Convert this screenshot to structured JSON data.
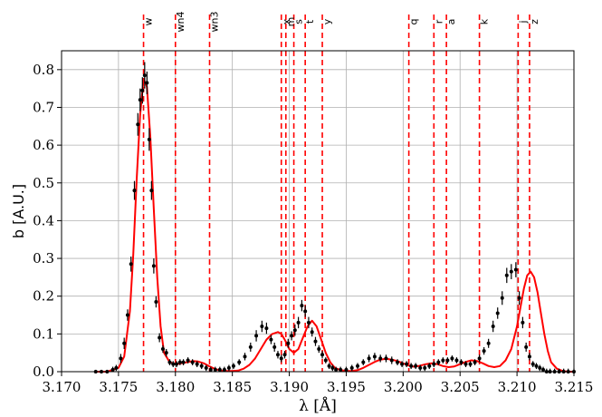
{
  "chart_data": {
    "type": "line",
    "xlabel": "λ [Å]",
    "ylabel": "b [A.U.]",
    "xlim": [
      3.17,
      3.215
    ],
    "ylim": [
      0.0,
      0.85
    ],
    "xticks": [
      "3.170",
      "3.175",
      "3.180",
      "3.185",
      "3.190",
      "3.195",
      "3.200",
      "3.205",
      "3.210",
      "3.215"
    ],
    "yticks": [
      "0.0",
      "0.1",
      "0.2",
      "0.3",
      "0.4",
      "0.5",
      "0.6",
      "0.7",
      "0.8"
    ],
    "grid": true,
    "line_labels": [
      {
        "label": "w",
        "x": 3.1772
      },
      {
        "label": "wn4",
        "x": 3.18
      },
      {
        "label": "wn3",
        "x": 3.183
      },
      {
        "label": "x",
        "x": 3.1893
      },
      {
        "label": "m",
        "x": 3.1897
      },
      {
        "label": "s",
        "x": 3.1904
      },
      {
        "label": "t",
        "x": 3.1914
      },
      {
        "label": "y",
        "x": 3.1929
      },
      {
        "label": "q",
        "x": 3.2005
      },
      {
        "label": "r",
        "x": 3.2027
      },
      {
        "label": "a",
        "x": 3.2038
      },
      {
        "label": "k",
        "x": 3.2067
      },
      {
        "label": "j",
        "x": 3.2101
      },
      {
        "label": "z",
        "x": 3.2111
      }
    ],
    "colors": {
      "fit": "#ff0000",
      "lines": "#ff0000",
      "points": "#000000",
      "grid": "#b0b0b0"
    },
    "series": [
      {
        "type": "scatter_errorbar",
        "x": [
          3.173,
          3.1735,
          3.174,
          3.1745,
          3.1748,
          3.1752,
          3.1755,
          3.1758,
          3.1761,
          3.1764,
          3.1767,
          3.1769,
          3.1771,
          3.1773,
          3.1775,
          3.1777,
          3.1779,
          3.1781,
          3.1783,
          3.1786,
          3.1789,
          3.1792,
          3.1795,
          3.1798,
          3.1801,
          3.1804,
          3.1807,
          3.1811,
          3.1815,
          3.1819,
          3.1823,
          3.1827,
          3.1831,
          3.1835,
          3.1839,
          3.1843,
          3.1847,
          3.1851,
          3.1856,
          3.1861,
          3.1866,
          3.1871,
          3.1876,
          3.188,
          3.1884,
          3.1887,
          3.189,
          3.1893,
          3.1896,
          3.1899,
          3.1902,
          3.1905,
          3.1908,
          3.1911,
          3.1914,
          3.1917,
          3.192,
          3.1923,
          3.1926,
          3.1929,
          3.1932,
          3.1935,
          3.1938,
          3.1941,
          3.1945,
          3.195,
          3.1955,
          3.196,
          3.1965,
          3.197,
          3.1975,
          3.198,
          3.1985,
          3.199,
          3.1995,
          3.1999,
          3.2003,
          3.2007,
          3.2011,
          3.2015,
          3.2019,
          3.2023,
          3.2027,
          3.2031,
          3.2035,
          3.2039,
          3.2043,
          3.2047,
          3.2051,
          3.2055,
          3.2059,
          3.2063,
          3.2067,
          3.2071,
          3.2075,
          3.2079,
          3.2083,
          3.2087,
          3.2091,
          3.2095,
          3.2099,
          3.2102,
          3.2105,
          3.2108,
          3.2111,
          3.2114,
          3.2117,
          3.212,
          3.2123,
          3.2126,
          3.2129,
          3.2133,
          3.2137,
          3.2141,
          3.2145,
          3.215
        ],
        "y": [
          0.0,
          0.0,
          0.0,
          0.005,
          0.01,
          0.035,
          0.075,
          0.15,
          0.285,
          0.48,
          0.655,
          0.72,
          0.745,
          0.785,
          0.765,
          0.615,
          0.48,
          0.28,
          0.185,
          0.09,
          0.06,
          0.05,
          0.025,
          0.02,
          0.02,
          0.025,
          0.025,
          0.03,
          0.025,
          0.02,
          0.015,
          0.01,
          0.005,
          0.005,
          0.005,
          0.005,
          0.01,
          0.015,
          0.025,
          0.04,
          0.065,
          0.095,
          0.12,
          0.115,
          0.085,
          0.065,
          0.045,
          0.035,
          0.045,
          0.075,
          0.095,
          0.11,
          0.13,
          0.175,
          0.16,
          0.13,
          0.105,
          0.08,
          0.06,
          0.045,
          0.03,
          0.015,
          0.01,
          0.005,
          0.005,
          0.005,
          0.01,
          0.015,
          0.025,
          0.035,
          0.04,
          0.035,
          0.035,
          0.03,
          0.025,
          0.02,
          0.02,
          0.015,
          0.015,
          0.01,
          0.01,
          0.015,
          0.02,
          0.025,
          0.03,
          0.03,
          0.035,
          0.03,
          0.025,
          0.02,
          0.02,
          0.025,
          0.035,
          0.055,
          0.075,
          0.12,
          0.155,
          0.195,
          0.255,
          0.265,
          0.27,
          0.195,
          0.13,
          0.065,
          0.04,
          0.02,
          0.015,
          0.01,
          0.005,
          0.0,
          0.0,
          0.0,
          0.0,
          0.0,
          0.0,
          0.0
        ],
        "yerr": [
          0.005,
          0.005,
          0.005,
          0.008,
          0.008,
          0.012,
          0.015,
          0.015,
          0.02,
          0.025,
          0.03,
          0.03,
          0.035,
          0.035,
          0.03,
          0.03,
          0.025,
          0.02,
          0.015,
          0.012,
          0.01,
          0.01,
          0.008,
          0.008,
          0.008,
          0.008,
          0.008,
          0.008,
          0.008,
          0.008,
          0.008,
          0.008,
          0.008,
          0.008,
          0.008,
          0.008,
          0.008,
          0.008,
          0.008,
          0.01,
          0.012,
          0.015,
          0.015,
          0.015,
          0.012,
          0.012,
          0.01,
          0.01,
          0.01,
          0.012,
          0.012,
          0.015,
          0.015,
          0.015,
          0.015,
          0.015,
          0.012,
          0.012,
          0.01,
          0.01,
          0.008,
          0.008,
          0.008,
          0.008,
          0.008,
          0.008,
          0.008,
          0.008,
          0.008,
          0.01,
          0.01,
          0.01,
          0.01,
          0.01,
          0.008,
          0.008,
          0.008,
          0.008,
          0.008,
          0.008,
          0.008,
          0.008,
          0.008,
          0.008,
          0.008,
          0.008,
          0.008,
          0.008,
          0.008,
          0.008,
          0.008,
          0.008,
          0.01,
          0.01,
          0.012,
          0.015,
          0.015,
          0.018,
          0.02,
          0.02,
          0.02,
          0.018,
          0.015,
          0.012,
          0.01,
          0.008,
          0.008,
          0.008,
          0.008,
          0.008,
          0.008,
          0.008,
          0.008,
          0.008,
          0.008,
          0.008
        ]
      },
      {
        "type": "fit_line",
        "x": [
          3.173,
          3.174,
          3.175,
          3.1755,
          3.176,
          3.1763,
          3.1766,
          3.1769,
          3.1772,
          3.1775,
          3.1778,
          3.1781,
          3.1784,
          3.1787,
          3.179,
          3.1795,
          3.18,
          3.1805,
          3.181,
          3.1815,
          3.182,
          3.1825,
          3.183,
          3.1835,
          3.184,
          3.1845,
          3.185,
          3.1855,
          3.186,
          3.1865,
          3.187,
          3.1875,
          3.188,
          3.1885,
          3.189,
          3.1893,
          3.1896,
          3.19,
          3.1904,
          3.1908,
          3.1912,
          3.1916,
          3.192,
          3.1924,
          3.1928,
          3.1932,
          3.1936,
          3.194,
          3.1945,
          3.195,
          3.1955,
          3.196,
          3.1965,
          3.197,
          3.1975,
          3.198,
          3.1985,
          3.199,
          3.1995,
          3.2,
          3.2005,
          3.201,
          3.2015,
          3.202,
          3.2025,
          3.203,
          3.2035,
          3.204,
          3.2045,
          3.205,
          3.2055,
          3.206,
          3.2065,
          3.207,
          3.2075,
          3.208,
          3.2085,
          3.209,
          3.2095,
          3.21,
          3.2103,
          3.2106,
          3.2109,
          3.2112,
          3.2115,
          3.2118,
          3.2121,
          3.2124,
          3.2127,
          3.213,
          3.2135,
          3.214,
          3.2145,
          3.215
        ],
        "y": [
          0.0,
          0.0,
          0.01,
          0.04,
          0.16,
          0.31,
          0.51,
          0.68,
          0.775,
          0.755,
          0.62,
          0.43,
          0.25,
          0.12,
          0.05,
          0.025,
          0.02,
          0.022,
          0.025,
          0.028,
          0.027,
          0.022,
          0.014,
          0.007,
          0.003,
          0.002,
          0.002,
          0.003,
          0.008,
          0.018,
          0.035,
          0.06,
          0.085,
          0.1,
          0.105,
          0.1,
          0.085,
          0.06,
          0.05,
          0.06,
          0.09,
          0.12,
          0.135,
          0.12,
          0.085,
          0.05,
          0.025,
          0.01,
          0.004,
          0.002,
          0.002,
          0.004,
          0.01,
          0.018,
          0.026,
          0.032,
          0.034,
          0.032,
          0.028,
          0.022,
          0.016,
          0.013,
          0.016,
          0.02,
          0.022,
          0.02,
          0.015,
          0.012,
          0.014,
          0.02,
          0.026,
          0.03,
          0.028,
          0.022,
          0.015,
          0.012,
          0.015,
          0.03,
          0.06,
          0.12,
          0.17,
          0.22,
          0.255,
          0.265,
          0.25,
          0.21,
          0.155,
          0.1,
          0.055,
          0.025,
          0.008,
          0.002,
          0.0,
          0.0
        ]
      }
    ]
  }
}
